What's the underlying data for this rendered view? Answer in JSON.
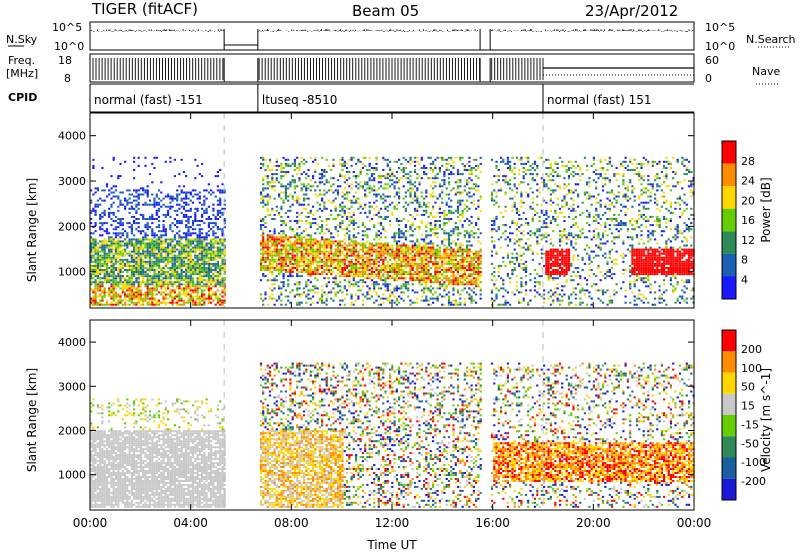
{
  "header": {
    "title": "TIGER (fitACF)",
    "beam": "Beam 05",
    "date": "23/Apr/2012"
  },
  "strips": {
    "nsky_label": "N.Sky",
    "nsky_ticks": [
      "10^5",
      "10^0"
    ],
    "nsearch_label": "N.Search",
    "nsearch_ticks": [
      "10^5",
      "10^0"
    ],
    "freq_label_line1": "Freq.",
    "freq_label_line2": "[MHz]",
    "freq_ticks": [
      "18",
      "8"
    ],
    "nave_label": "Nave",
    "nave_ticks": [
      "60",
      "0"
    ],
    "cpid_label": "CPID",
    "cpid_segments": [
      {
        "label": "normal (fast) -151",
        "start_h": 0.0,
        "end_h": 5.33
      },
      {
        "label": "ltuseq -8510",
        "start_h": 6.67,
        "end_h": 18.0
      },
      {
        "label": "normal (fast) 151",
        "start_h": 18.0,
        "end_h": 24.0
      }
    ],
    "data_gaps_h": [
      [
        5.33,
        6.67
      ],
      [
        15.5,
        15.9
      ]
    ]
  },
  "chart_data": [
    {
      "type": "heatmap",
      "name": "power",
      "ylabel": "Slant Range [km]",
      "yticks": [
        "1000",
        "2000",
        "3000",
        "4000"
      ],
      "ylim": [
        200,
        4500
      ],
      "xlim": [
        0,
        24
      ],
      "colorbar_label": "Power [dB]",
      "colorbar_ticks": [
        "4",
        "8",
        "12",
        "16",
        "20",
        "24",
        "28"
      ],
      "colorbar_colors": [
        "#1a1aff",
        "#1a5fb4",
        "#2e8b57",
        "#66cd00",
        "#ffd700",
        "#ff8c00",
        "#ff0000"
      ]
    },
    {
      "type": "heatmap",
      "name": "velocity",
      "ylabel": "Slant Range [km]",
      "yticks": [
        "1000",
        "2000",
        "3000",
        "4000"
      ],
      "ylim": [
        200,
        4500
      ],
      "xlim": [
        0,
        24
      ],
      "xlabel": "Time UT",
      "xticks": [
        "00:00",
        "04:00",
        "08:00",
        "12:00",
        "16:00",
        "20:00",
        "00:00"
      ],
      "colorbar_label": "Velocity [m s^-1]",
      "colorbar_ticks": [
        "200",
        "100",
        "50",
        "15",
        "-15",
        "-50",
        "-100",
        "-200"
      ],
      "colorbar_colors": [
        "#1a1ad6",
        "#1a5fa0",
        "#2e8b57",
        "#66cd00",
        "#c8c8c8",
        "#ffd700",
        "#ff8c00",
        "#ff0000"
      ]
    }
  ]
}
